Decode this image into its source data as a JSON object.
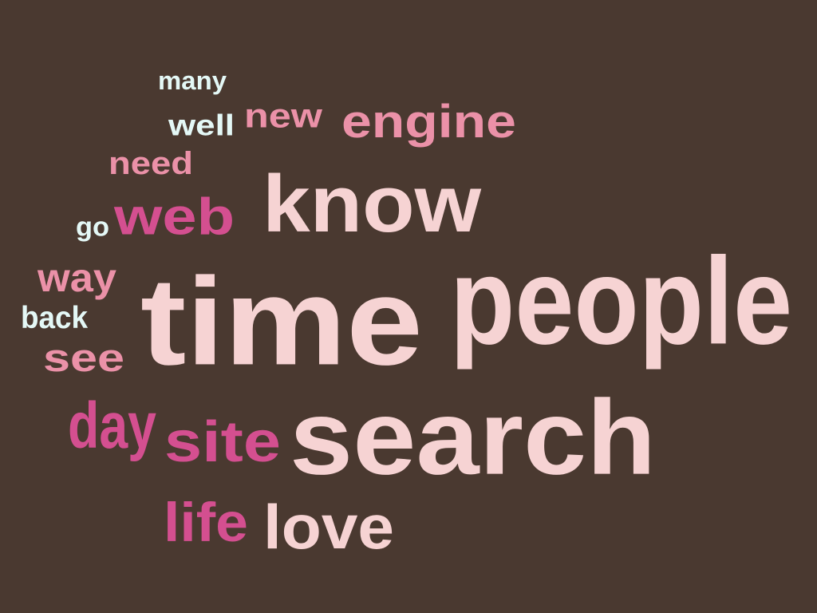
{
  "background": "#4a3930",
  "palette": {
    "pale_pink": "#f6d3d3",
    "pink": "#eb91a8",
    "magenta": "#d44f90",
    "light_cyan": "#e4f8f6"
  },
  "words": [
    {
      "text": "many"
    },
    {
      "text": "well"
    },
    {
      "text": "new"
    },
    {
      "text": "engine"
    },
    {
      "text": "need"
    },
    {
      "text": "go"
    },
    {
      "text": "web"
    },
    {
      "text": "know"
    },
    {
      "text": "way"
    },
    {
      "text": "back"
    },
    {
      "text": "see"
    },
    {
      "text": "time"
    },
    {
      "text": "people"
    },
    {
      "text": "day"
    },
    {
      "text": "site"
    },
    {
      "text": "search"
    },
    {
      "text": "life"
    },
    {
      "text": "love"
    }
  ]
}
